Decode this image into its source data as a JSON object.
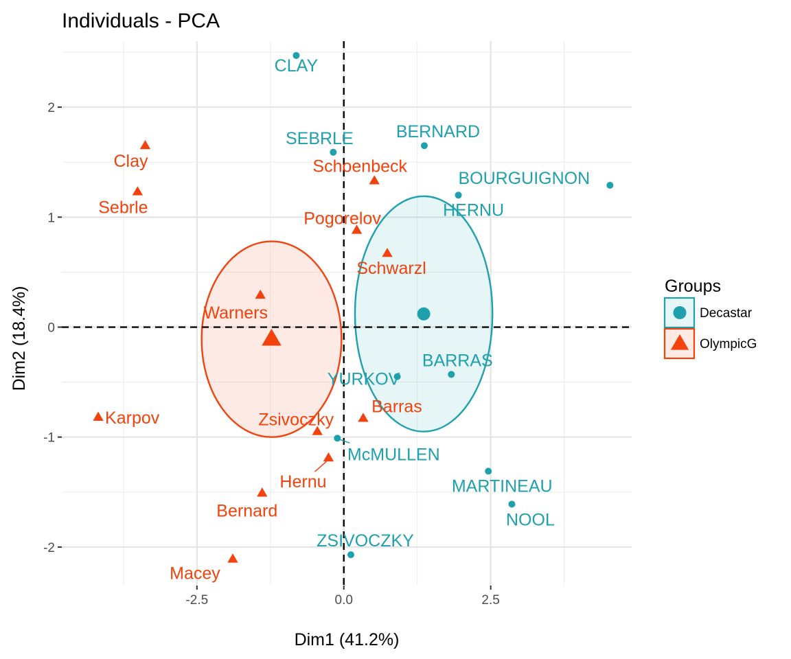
{
  "chart_data": {
    "type": "scatter",
    "title": "Individuals - PCA",
    "xlabel": "Dim1 (41.2%)",
    "ylabel": "Dim2 (18.4%)",
    "xlim": [
      -4.8,
      4.9
    ],
    "ylim": [
      -2.35,
      2.6
    ],
    "x_ticks": [
      -2.5,
      0.0,
      2.5
    ],
    "x_tick_labels": [
      "-2.5",
      "0.0",
      "2.5"
    ],
    "y_ticks": [
      -2,
      -1,
      0,
      1,
      2
    ],
    "y_tick_labels": [
      "-2",
      "-1",
      "0",
      "1",
      "2"
    ],
    "grid": true,
    "reference_lines": {
      "x": 0,
      "y": 0
    },
    "legend": {
      "title": "Groups",
      "position": "right",
      "entries": [
        {
          "label": "Decastar",
          "color": "#1fa0ad",
          "shape": "circle"
        },
        {
          "label": "OlympicG",
          "color": "#f2420d",
          "shape": "triangle"
        }
      ]
    },
    "series": [
      {
        "name": "Decastar",
        "color": "#1fa0ad",
        "shape": "circle",
        "points": [
          {
            "label": "CLAY",
            "x": -0.81,
            "y": 2.47
          },
          {
            "label": "SEBRLE",
            "x": -0.18,
            "y": 1.59
          },
          {
            "label": "BERNARD",
            "x": 1.37,
            "y": 1.65
          },
          {
            "label": "BOURGUIGNON",
            "x": 4.53,
            "y": 1.29
          },
          {
            "label": "HERNU",
            "x": 1.95,
            "y": 1.2
          },
          {
            "label": "BARRAS",
            "x": 1.83,
            "y": -0.43
          },
          {
            "label": "YURKOV",
            "x": 0.91,
            "y": -0.45
          },
          {
            "label": "McMULLEN",
            "x": -0.11,
            "y": -1.01
          },
          {
            "label": "MARTINEAU",
            "x": 2.46,
            "y": -1.31
          },
          {
            "label": "NOOL",
            "x": 2.86,
            "y": -1.61
          },
          {
            "label": "ZSIVOCZKY",
            "x": 0.12,
            "y": -2.07
          }
        ],
        "centroid": {
          "x": 1.36,
          "y": 0.12
        },
        "ellipse": {
          "cx": 1.36,
          "cy": 0.12,
          "rx": 1.17,
          "ry": 1.07
        }
      },
      {
        "name": "OlympicG",
        "color": "#f2420d",
        "shape": "triangle",
        "points": [
          {
            "label": "Clay",
            "x": -3.38,
            "y": 1.65
          },
          {
            "label": "Sebrle",
            "x": -3.51,
            "y": 1.23
          },
          {
            "label": "Schoenbeck",
            "x": 0.52,
            "y": 1.33
          },
          {
            "label": "Pogorelov",
            "x": 0.22,
            "y": 0.88
          },
          {
            "label": "Schwarzl",
            "x": 0.74,
            "y": 0.67
          },
          {
            "label": "Warners",
            "x": -1.42,
            "y": 0.29
          },
          {
            "label": "Karpov",
            "x": -4.18,
            "y": -0.82
          },
          {
            "label": "Barras",
            "x": 0.33,
            "y": -0.83
          },
          {
            "label": "Zsivoczky",
            "x": -0.45,
            "y": -0.95
          },
          {
            "label": "Hernu",
            "x": -0.26,
            "y": -1.19
          },
          {
            "label": "Bernard",
            "x": -1.39,
            "y": -1.51
          },
          {
            "label": "Macey",
            "x": -1.89,
            "y": -2.11
          }
        ],
        "centroid": {
          "x": -1.23,
          "y": -0.11
        },
        "ellipse": {
          "cx": -1.23,
          "cy": -0.11,
          "rx": 1.19,
          "ry": 0.89
        }
      }
    ]
  }
}
